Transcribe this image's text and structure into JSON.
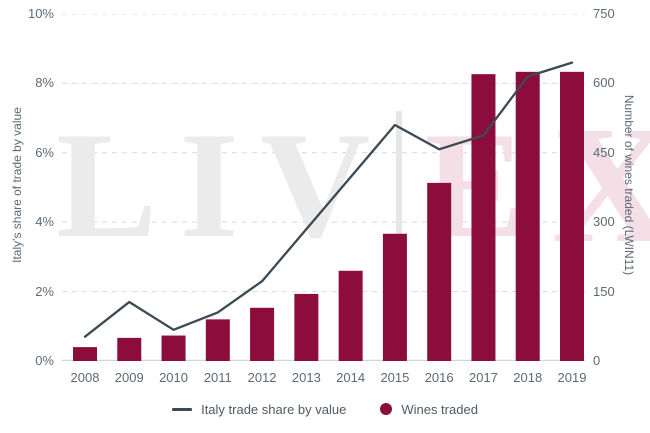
{
  "watermark": {
    "left_text": "LIV",
    "e_text": "E",
    "x_text": "X"
  },
  "colors": {
    "bar": "#8C0D3C",
    "line": "#3C4A55",
    "gridline": "#D9D9D9",
    "baseline": "#CDD6DB",
    "axis_text": "#5D6A75",
    "watermark_gray": "#EBEBEB",
    "watermark_pink": "#F5DFE7"
  },
  "chart_data": {
    "type": "combo",
    "categories": [
      "2008",
      "2009",
      "2010",
      "2011",
      "2012",
      "2013",
      "2014",
      "2015",
      "2016",
      "2017",
      "2018",
      "2019"
    ],
    "series": [
      {
        "name": "Italy trade share by value",
        "type": "line",
        "axis": "left",
        "color": "#3C4A55",
        "values": [
          0.7,
          1.7,
          0.9,
          1.4,
          2.3,
          3.8,
          5.3,
          6.8,
          6.1,
          6.5,
          8.2,
          8.6
        ]
      },
      {
        "name": "Wines traded",
        "type": "bar",
        "axis": "right",
        "color": "#8C0D3C",
        "values": [
          30,
          50,
          55,
          90,
          115,
          145,
          195,
          275,
          385,
          620,
          625,
          625
        ]
      }
    ],
    "left_axis": {
      "label": "Italy's share of trade by value",
      "ticks": [
        "0%",
        "2%",
        "4%",
        "6%",
        "8%",
        "10%"
      ],
      "min": 0,
      "max": 10
    },
    "right_axis": {
      "label": "Number of wines traded (LWIN11)",
      "ticks": [
        "0",
        "150",
        "300",
        "450",
        "600",
        "750"
      ],
      "min": 0,
      "max": 750
    },
    "grid": "horizontal-dashed",
    "legend_position": "bottom"
  }
}
